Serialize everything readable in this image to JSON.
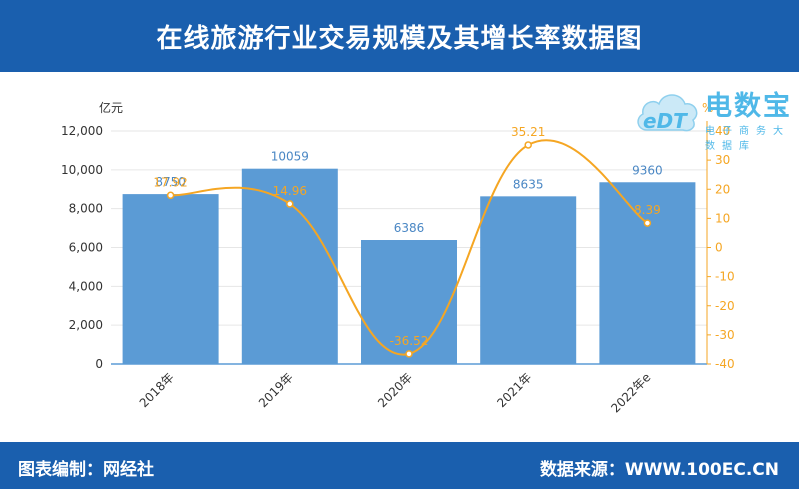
{
  "header": {
    "title": "在线旅游行业交易规模及其增长率数据图"
  },
  "footer": {
    "left": "图表编制：网经社",
    "right": "数据来源：WWW.100EC.CN"
  },
  "logo": {
    "main": "电数宝",
    "sub": "电子商务大数据库"
  },
  "colors": {
    "header_bg": "#1a5fae",
    "bar": "#5b9bd5",
    "line": "#f5a623",
    "bar_label": "#4a87c4",
    "axis_text": "#333333",
    "logo": "#4fb8e8"
  },
  "chart_data": {
    "type": "bar",
    "categories": [
      "2018年",
      "2019年",
      "2020年",
      "2021年",
      "2022年e"
    ],
    "series": [
      {
        "values": [
          8750,
          10059,
          6386,
          8635,
          9360
        ],
        "axis": "left",
        "type": "bar"
      },
      {
        "values": [
          17.92,
          14.96,
          -36.52,
          35.21,
          8.39
        ],
        "axis": "right",
        "type": "line"
      }
    ],
    "ylabel": "亿元",
    "y2label": "%",
    "ylim": [
      0,
      12000
    ],
    "y2lim": [
      -40,
      40
    ],
    "yticks": [
      "0",
      "2,000",
      "4,000",
      "6,000",
      "8,000",
      "10,000",
      "12,000"
    ],
    "y2ticks": [
      "-40",
      "-30",
      "-20",
      "-10",
      "0",
      "10",
      "20",
      "30",
      "40"
    ],
    "bar_labels": [
      "8750",
      "10059",
      "6386",
      "8635",
      "9360"
    ],
    "line_labels": [
      "17.92",
      "14.96",
      "-36.52",
      "35.21",
      "8.39"
    ],
    "grid": true
  }
}
